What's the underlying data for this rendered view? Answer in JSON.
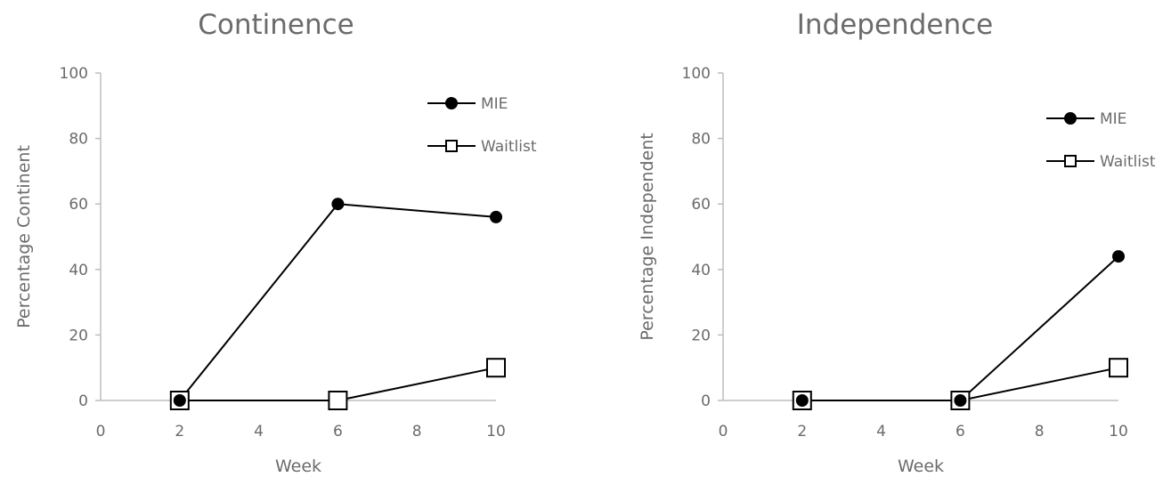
{
  "chart_data": [
    {
      "type": "line",
      "title": "Continence",
      "xlabel": "Week",
      "ylabel": "Percentage Continent",
      "xlim": [
        0,
        10
      ],
      "ylim": [
        0,
        100
      ],
      "xticks": [
        0,
        2,
        4,
        6,
        8,
        10
      ],
      "yticks": [
        0,
        20,
        40,
        60,
        80,
        100
      ],
      "legend_position": "top-right",
      "grid": false,
      "series": [
        {
          "name": "MIE",
          "marker": "filled-circle",
          "color": "#000000",
          "x": [
            2,
            6,
            10
          ],
          "y": [
            0,
            60,
            56
          ]
        },
        {
          "name": "Waitlist",
          "marker": "open-square",
          "color": "#000000",
          "x": [
            2,
            6,
            10
          ],
          "y": [
            0,
            0,
            10
          ]
        }
      ]
    },
    {
      "type": "line",
      "title": "Independence",
      "xlabel": "Week",
      "ylabel": "Percentage Independent",
      "xlim": [
        0,
        10
      ],
      "ylim": [
        0,
        100
      ],
      "xticks": [
        0,
        2,
        4,
        6,
        8,
        10
      ],
      "yticks": [
        0,
        20,
        40,
        60,
        80,
        100
      ],
      "legend_position": "top-right",
      "grid": false,
      "series": [
        {
          "name": "MIE",
          "marker": "filled-circle",
          "color": "#000000",
          "x": [
            2,
            6,
            10
          ],
          "y": [
            0,
            0,
            44
          ]
        },
        {
          "name": "Waitlist",
          "marker": "open-square",
          "color": "#000000",
          "x": [
            2,
            6,
            10
          ],
          "y": [
            0,
            0,
            10
          ]
        }
      ]
    }
  ]
}
